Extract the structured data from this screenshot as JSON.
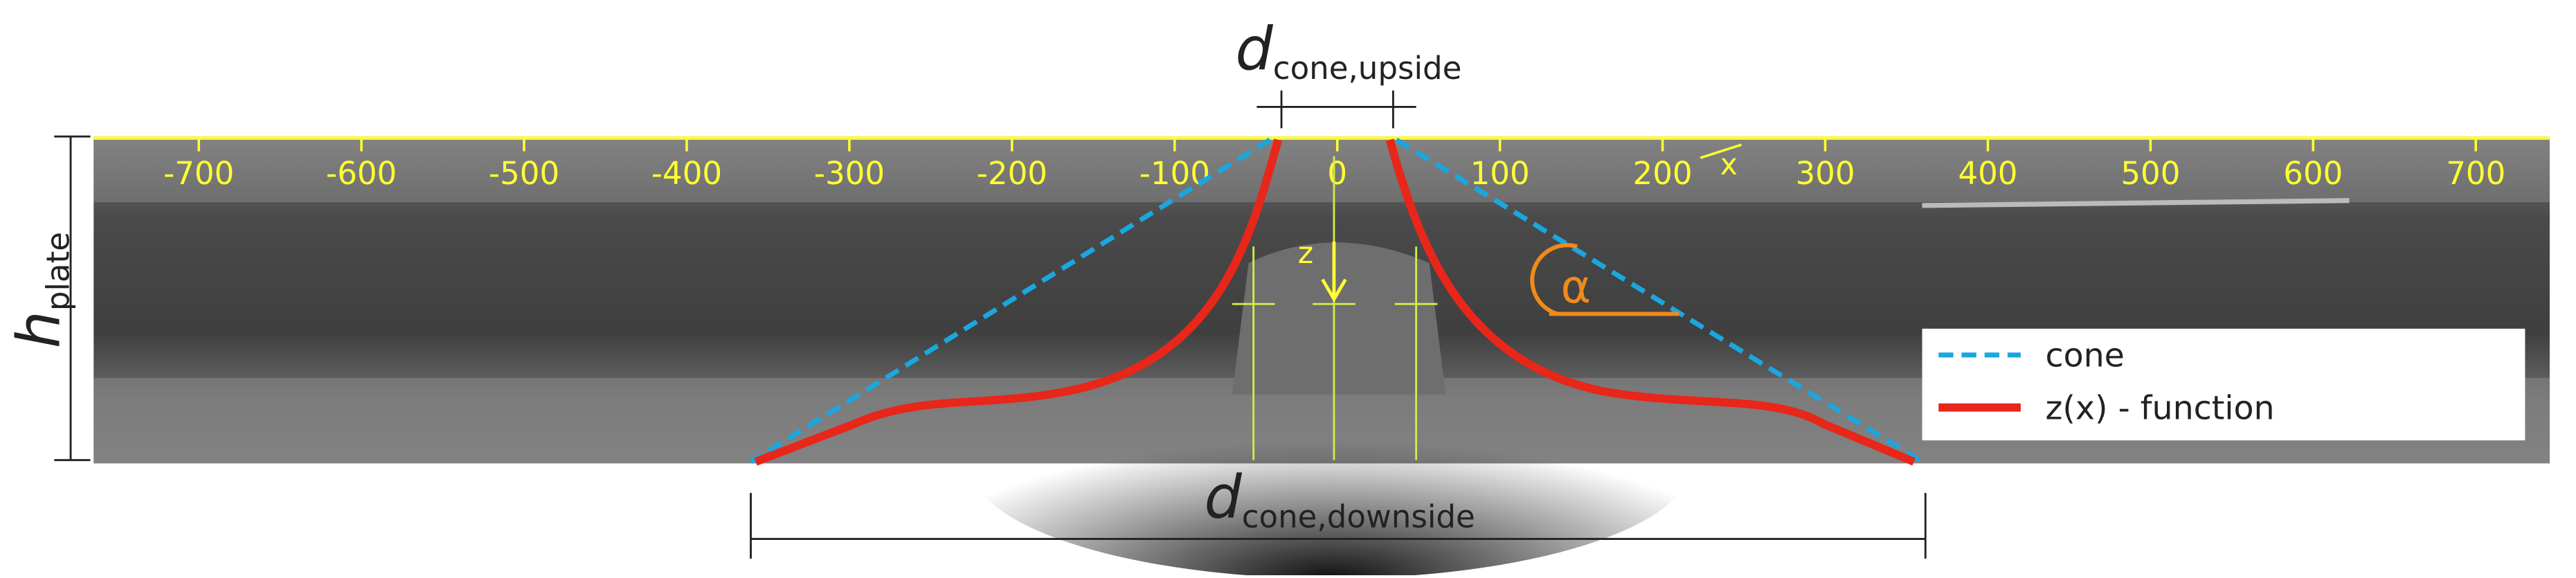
{
  "ruler": {
    "labels": [
      -700,
      -600,
      -500,
      -400,
      -300,
      -200,
      -100,
      0,
      100,
      200,
      300,
      400,
      500,
      600,
      700
    ]
  },
  "axes": {
    "x": "x",
    "z": "z"
  },
  "angle": "α",
  "dimensions": {
    "upside": {
      "symbol": "d",
      "subscript": "cone,upside"
    },
    "downside": {
      "symbol": "d",
      "subscript": "cone,downside"
    },
    "height": {
      "symbol": "h",
      "subscript": "plate"
    }
  },
  "legend": [
    {
      "label": "cone"
    },
    {
      "label": "z(x) - function"
    }
  ]
}
